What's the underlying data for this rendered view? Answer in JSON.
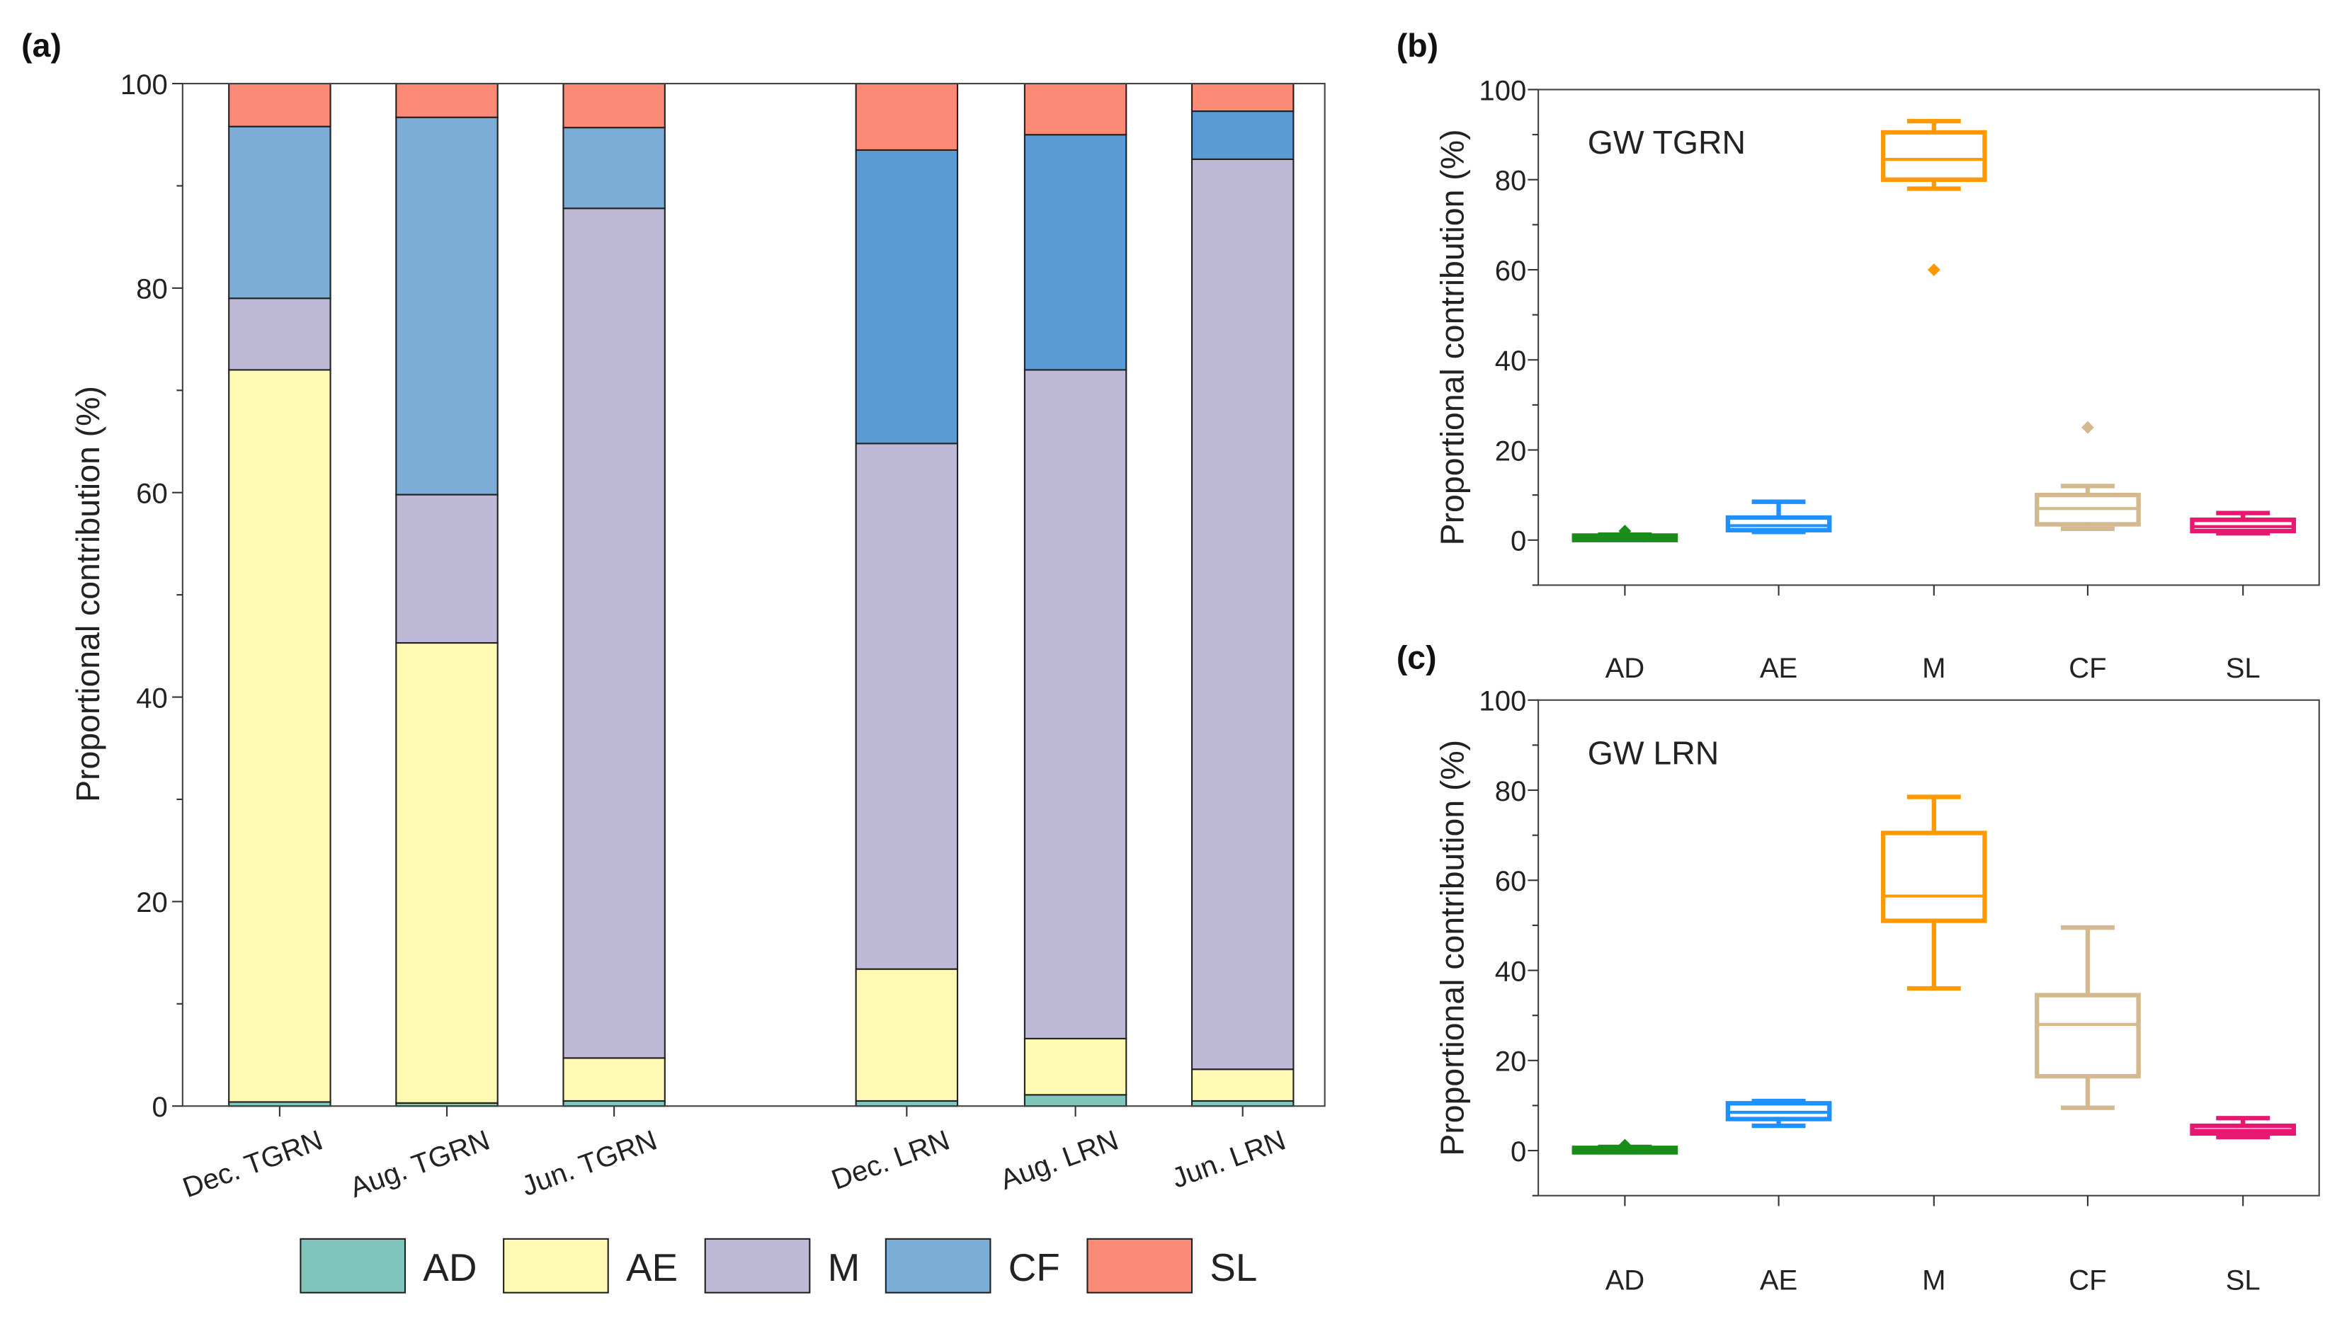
{
  "chart_data": [
    {
      "panel": "(a)",
      "type": "bar",
      "stacked": true,
      "ylabel": "Proportional contribution (%)",
      "ylim": [
        0,
        100
      ],
      "yticks": [
        0,
        20,
        40,
        60,
        80,
        100
      ],
      "categories": [
        "Dec. TGRN",
        "Aug. TGRN",
        "Jun. TGRN",
        "Dec. LRN",
        "Aug. LRN",
        "Jun. LRN"
      ],
      "series": [
        {
          "name": "AD",
          "color": "#80c6bd",
          "values": [
            0.4,
            0.3,
            0.5,
            0.5,
            1.1,
            0.5
          ]
        },
        {
          "name": "AE",
          "color": "#fff9b3",
          "values": [
            71.6,
            45.0,
            4.2,
            12.9,
            5.5,
            3.1
          ]
        },
        {
          "name": "M",
          "color": "#bfb9d8",
          "values": [
            7.0,
            14.5,
            83.1,
            51.4,
            65.4,
            89.0
          ]
        },
        {
          "name": "CF",
          "color": "#7badd6",
          "color_lrn": "#5b9bd5",
          "values": [
            16.8,
            36.9,
            7.9,
            28.7,
            23.0,
            4.7
          ]
        },
        {
          "name": "SL",
          "color": "#fb8a76",
          "values": [
            4.2,
            3.3,
            4.3,
            6.5,
            5.0,
            2.7
          ]
        }
      ],
      "legend_position": "bottom",
      "grid": false
    },
    {
      "panel": "(b)",
      "type": "box",
      "title": "GW TGRN",
      "ylabel": "Proportional contribution (%)",
      "ylim": [
        -10,
        100
      ],
      "yticks": [
        0,
        20,
        40,
        60,
        80,
        100
      ],
      "categories": [
        "AD",
        "AE",
        "M",
        "CF",
        "SL"
      ],
      "colors": [
        "#1a8c1a",
        "#1e90ff",
        "#ff9900",
        "#d4b98e",
        "#e8176f"
      ],
      "boxes": [
        {
          "min": 0.3,
          "q1": 0.6,
          "median": 0.8,
          "q3": 1.0,
          "max": 1.2,
          "outliers": [
            2.0
          ]
        },
        {
          "min": 1.8,
          "q1": 2.2,
          "median": 3.2,
          "q3": 5.0,
          "max": 8.5,
          "outliers": []
        },
        {
          "min": 78,
          "q1": 80,
          "median": 84.5,
          "q3": 90.5,
          "max": 93,
          "outliers": [
            60
          ]
        },
        {
          "min": 2.5,
          "q1": 3.5,
          "median": 7.0,
          "q3": 10.0,
          "max": 12.0,
          "outliers": [
            25
          ]
        },
        {
          "min": 1.5,
          "q1": 2.0,
          "median": 3.0,
          "q3": 4.5,
          "max": 6.0,
          "outliers": []
        }
      ],
      "grid": false
    },
    {
      "panel": "(c)",
      "type": "box",
      "title": "GW LRN",
      "ylabel": "Proportional contribution (%)",
      "ylim": [
        -10,
        100
      ],
      "yticks": [
        0,
        20,
        40,
        60,
        80,
        100
      ],
      "categories": [
        "AD",
        "AE",
        "M",
        "CF",
        "SL"
      ],
      "colors": [
        "#1a8c1a",
        "#1e90ff",
        "#ff9900",
        "#d4b98e",
        "#e8176f"
      ],
      "boxes": [
        {
          "min": 0.2,
          "q1": 0.3,
          "median": 0.4,
          "q3": 0.6,
          "max": 0.8,
          "outliers": [
            1.2
          ]
        },
        {
          "min": 5.5,
          "q1": 7.0,
          "median": 8.5,
          "q3": 10.5,
          "max": 11.0,
          "outliers": []
        },
        {
          "min": 36,
          "q1": 51,
          "median": 56.5,
          "q3": 70.5,
          "max": 78.5,
          "outliers": []
        },
        {
          "min": 9.5,
          "q1": 16.5,
          "median": 28.0,
          "q3": 34.5,
          "max": 49.5,
          "outliers": []
        },
        {
          "min": 3.0,
          "q1": 3.8,
          "median": 4.5,
          "q3": 5.5,
          "max": 7.2,
          "outliers": []
        }
      ],
      "grid": false
    }
  ]
}
